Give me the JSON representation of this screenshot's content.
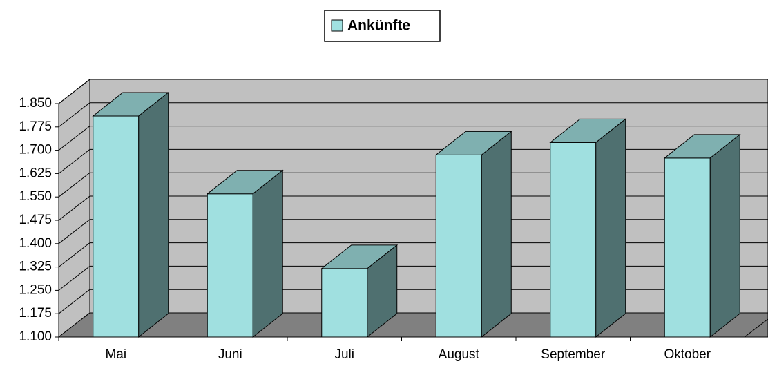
{
  "chart_data": {
    "type": "bar3d",
    "categories": [
      "Mai",
      "Juni",
      "Juli",
      "August",
      "September",
      "Oktober"
    ],
    "series": [
      {
        "name": "Ankünfte",
        "color": "#a0e0e0",
        "values": [
          1810,
          1560,
          1320,
          1685,
          1725,
          1675
        ]
      }
    ],
    "ylim": [
      1100,
      1850
    ],
    "yticks": [
      {
        "value": 1100,
        "label": "1.100"
      },
      {
        "value": 1175,
        "label": "1.175"
      },
      {
        "value": 1250,
        "label": "1.250"
      },
      {
        "value": 1325,
        "label": "1.325"
      },
      {
        "value": 1400,
        "label": "1.400"
      },
      {
        "value": 1475,
        "label": "1.475"
      },
      {
        "value": 1550,
        "label": "1.550"
      },
      {
        "value": 1625,
        "label": "1.625"
      },
      {
        "value": 1700,
        "label": "1.700"
      },
      {
        "value": 1775,
        "label": "1.775"
      },
      {
        "value": 1850,
        "label": "1.850"
      }
    ],
    "grid": true,
    "legend": "top"
  }
}
